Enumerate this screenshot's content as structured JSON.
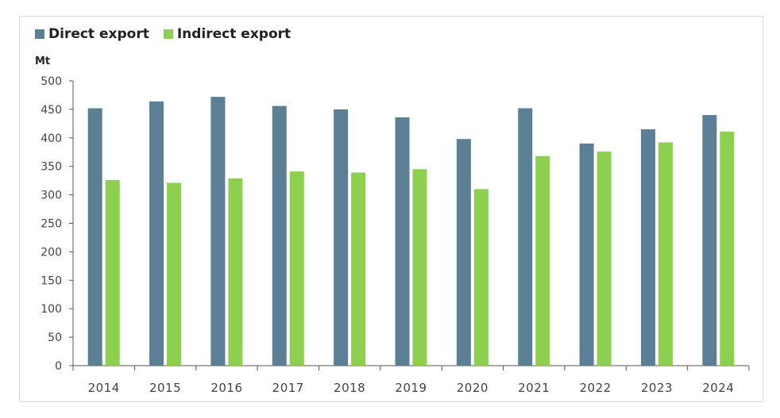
{
  "chart_data": {
    "type": "bar",
    "ylabel": "Mt",
    "ylim": [
      0,
      500
    ],
    "yticks": [
      0,
      50,
      100,
      150,
      200,
      250,
      300,
      350,
      400,
      450,
      500
    ],
    "categories": [
      "2014",
      "2015",
      "2016",
      "2017",
      "2018",
      "2019",
      "2020",
      "2021",
      "2022",
      "2023",
      "2024"
    ],
    "series": [
      {
        "name": "Direct export",
        "color": "#5b7f95",
        "values": [
          452,
          464,
          472,
          456,
          450,
          436,
          398,
          452,
          390,
          415,
          440
        ]
      },
      {
        "name": "Indirect export",
        "color": "#8dcf4f",
        "values": [
          326,
          321,
          329,
          341,
          339,
          345,
          310,
          368,
          376,
          392,
          411
        ]
      }
    ],
    "legend_position": "top-left",
    "grid": false
  }
}
